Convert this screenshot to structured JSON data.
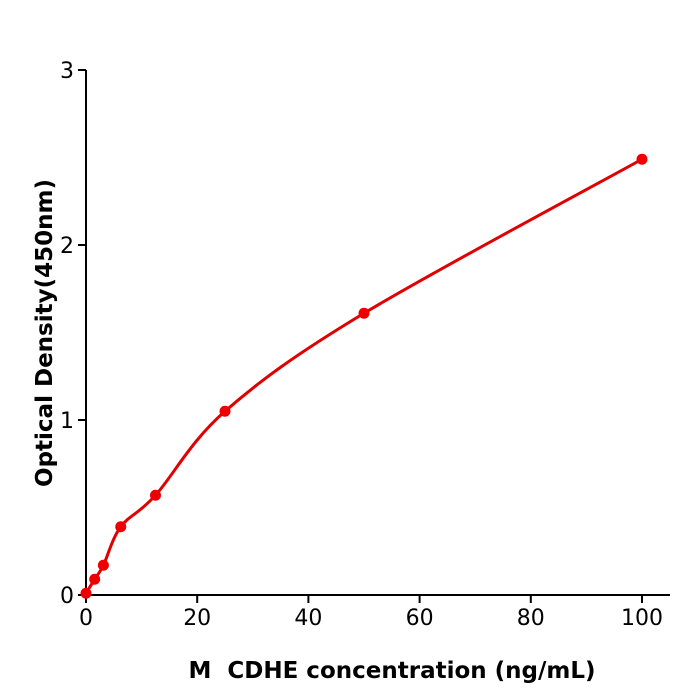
{
  "chart_data": {
    "type": "scatter",
    "title": "",
    "xlabel": "M  CDHE concentration (ng/mL)",
    "ylabel": "Optical Density(450nm)",
    "xlim": [
      0,
      105
    ],
    "ylim": [
      0,
      3
    ],
    "xticks": [
      "0",
      "20",
      "40",
      "60",
      "80",
      "100"
    ],
    "yticks": [
      "0",
      "1",
      "2",
      "3"
    ],
    "grid": false,
    "fit_curve": true,
    "series": [
      {
        "x": [
          0,
          1.5625,
          3.125,
          6.25,
          12.5,
          25,
          50,
          100
        ],
        "y": [
          0.01,
          0.09,
          0.17,
          0.39,
          0.57,
          1.05,
          1.61,
          2.49
        ]
      }
    ],
    "colors": {
      "points": "#ee0000",
      "curve": "#e00000",
      "axes": "#000000"
    }
  }
}
